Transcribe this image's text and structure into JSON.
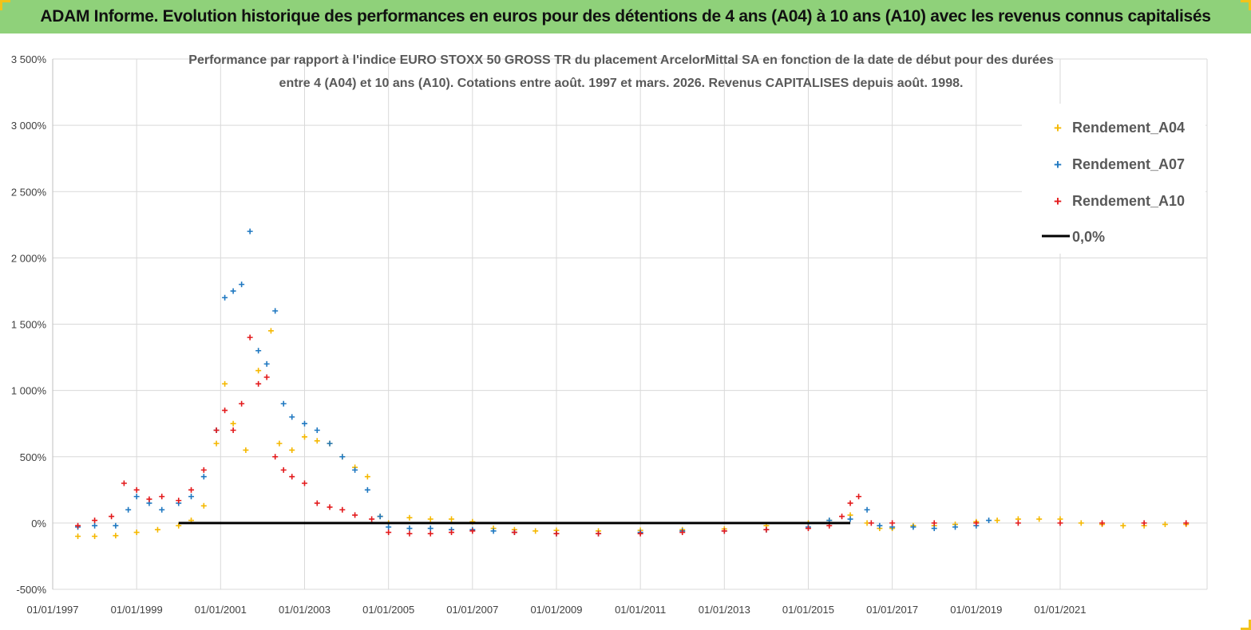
{
  "banner": {
    "title": "ADAM Informe. Evolution historique des performances en euros pour des détentions de 4 ans (A04) à 10 ans (A10) avec les revenus connus capitalisés"
  },
  "chart_data": {
    "type": "scatter",
    "title_line1": "Performance par rapport à l'indice EURO STOXX 50 GROSS TR  du placement ArcelorMittal SA en fonction de la date de début pour des durées",
    "title_line2": "entre 4 (A04) et 10 ans (A10). Cotations entre août. 1997 et mars. 2026. Revenus CAPITALISES depuis août. 1998.",
    "y_ticks": [
      -500,
      0,
      500,
      1000,
      1500,
      2000,
      2500,
      3000,
      3500
    ],
    "y_tick_labels": [
      "-500%",
      "0%",
      "500%",
      "1 000%",
      "1 500%",
      "2 000%",
      "2 500%",
      "3 000%",
      "3 500%"
    ],
    "ylim": [
      -500,
      3500
    ],
    "x_tick_labels": [
      "01/01/1997",
      "01/01/1999",
      "01/01/2001",
      "01/01/2003",
      "01/01/2005",
      "01/01/2007",
      "01/01/2009",
      "01/01/2011",
      "01/01/2013",
      "01/01/2015",
      "01/01/2017",
      "01/01/2019",
      "01/01/2021"
    ],
    "x_ticks_year": [
      1997,
      1999,
      2001,
      2003,
      2005,
      2007,
      2009,
      2011,
      2013,
      2015,
      2017,
      2019,
      2021
    ],
    "xlim_year": [
      1997,
      2024.5
    ],
    "grid": true,
    "legend_position": "top-right",
    "reference_line": {
      "name": "0,0%",
      "value": 0,
      "color": "#000000"
    },
    "series": [
      {
        "name": "Rendement_A04",
        "color": "#f5b800",
        "x_year": [
          1997.6,
          1998.0,
          1998.5,
          1999.0,
          1999.5,
          2000.0,
          2000.3,
          2000.6,
          2000.9,
          2001.1,
          2001.3,
          2001.6,
          2001.9,
          2002.2,
          2002.4,
          2002.7,
          2003.0,
          2003.3,
          2003.6,
          2003.9,
          2004.2,
          2004.5,
          2004.8,
          2005.0,
          2005.5,
          2006.0,
          2006.5,
          2007.0,
          2007.5,
          2008.0,
          2008.5,
          2009.0,
          2010.0,
          2011.0,
          2012.0,
          2013.0,
          2014.0,
          2015.0,
          2015.5,
          2016.0,
          2016.4,
          2016.7,
          2017.0,
          2017.5,
          2018.0,
          2018.5,
          2019.0,
          2019.5,
          2020.0,
          2020.5,
          2021.0,
          2021.5,
          2022.0,
          2022.5,
          2023.0,
          2023.5,
          2024.0
        ],
        "values": [
          -100,
          -100,
          -95,
          -70,
          -50,
          -20,
          20,
          130,
          600,
          1050,
          750,
          550,
          1150,
          1450,
          600,
          550,
          650,
          620,
          600,
          500,
          420,
          350,
          50,
          0,
          40,
          30,
          30,
          10,
          -40,
          -50,
          -60,
          -55,
          -60,
          -55,
          -50,
          -45,
          -20,
          0,
          20,
          60,
          0,
          -40,
          -40,
          -20,
          -20,
          -10,
          10,
          20,
          30,
          30,
          30,
          0,
          -10,
          -20,
          -20,
          -10,
          -10
        ]
      },
      {
        "name": "Rendement_A07",
        "color": "#1f78c1",
        "x_year": [
          1997.6,
          1998.0,
          1998.5,
          1998.8,
          1999.0,
          1999.3,
          1999.6,
          2000.0,
          2000.3,
          2000.6,
          2000.9,
          2001.1,
          2001.3,
          2001.5,
          2001.7,
          2001.9,
          2002.1,
          2002.3,
          2002.5,
          2002.7,
          2003.0,
          2003.3,
          2003.6,
          2003.9,
          2004.2,
          2004.5,
          2004.8,
          2005.0,
          2005.5,
          2006.0,
          2006.5,
          2007.0,
          2007.5,
          2008.0,
          2009.0,
          2010.0,
          2011.0,
          2012.0,
          2013.0,
          2014.0,
          2015.0,
          2015.5,
          2016.0,
          2016.4,
          2016.7,
          2017.0,
          2017.5,
          2018.0,
          2018.5,
          2019.0,
          2019.3
        ],
        "values": [
          -30,
          -20,
          -20,
          100,
          200,
          150,
          100,
          150,
          200,
          350,
          700,
          1700,
          1750,
          1800,
          2200,
          1300,
          1200,
          1600,
          900,
          800,
          750,
          700,
          600,
          500,
          400,
          250,
          50,
          -30,
          -40,
          -40,
          -50,
          -50,
          -60,
          -70,
          -80,
          -80,
          -70,
          -60,
          -60,
          -50,
          -30,
          20,
          30,
          100,
          -20,
          -30,
          -30,
          -40,
          -30,
          -20,
          20
        ]
      },
      {
        "name": "Rendement_A10",
        "color": "#e31a1c",
        "x_year": [
          1997.6,
          1998.0,
          1998.4,
          1998.7,
          1999.0,
          1999.3,
          1999.6,
          2000.0,
          2000.3,
          2000.6,
          2000.9,
          2001.1,
          2001.3,
          2001.5,
          2001.7,
          2001.9,
          2002.1,
          2002.3,
          2002.5,
          2002.7,
          2003.0,
          2003.3,
          2003.6,
          2003.9,
          2004.2,
          2004.6,
          2005.0,
          2005.5,
          2006.0,
          2006.5,
          2007.0,
          2008.0,
          2009.0,
          2010.0,
          2011.0,
          2012.0,
          2013.0,
          2014.0,
          2015.0,
          2015.5,
          2015.8,
          2016.0,
          2016.2,
          2016.5,
          2017.0,
          2018.0,
          2019.0,
          2020.0,
          2021.0,
          2022.0,
          2023.0,
          2024.0
        ],
        "values": [
          -20,
          20,
          50,
          300,
          250,
          180,
          200,
          170,
          250,
          400,
          700,
          850,
          700,
          900,
          1400,
          1050,
          1100,
          500,
          400,
          350,
          300,
          150,
          120,
          100,
          60,
          30,
          -70,
          -80,
          -80,
          -70,
          -60,
          -70,
          -80,
          -80,
          -80,
          -70,
          -60,
          -50,
          -40,
          -20,
          50,
          150,
          200,
          0,
          0,
          0,
          0,
          0,
          0,
          0,
          0,
          0
        ]
      }
    ]
  }
}
